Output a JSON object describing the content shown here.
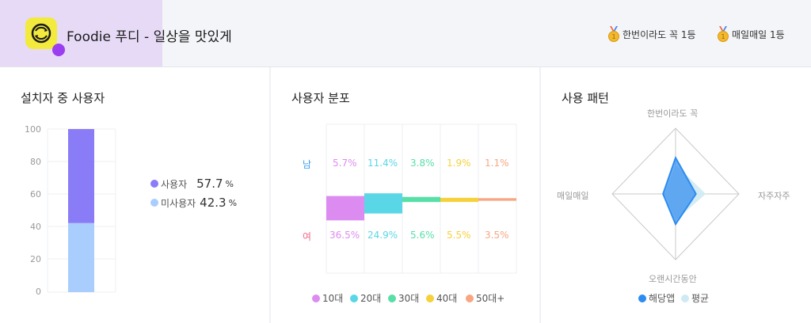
{
  "app": {
    "title": "Foodie 푸디 - 일상을 맛있게"
  },
  "badges": [
    {
      "label": "한번이라도 꼭 1등",
      "icon": "medal-icon"
    },
    {
      "label": "매일매일 1등",
      "icon": "medal-icon"
    }
  ],
  "panels": {
    "users": {
      "title": "설치자 중 사용자"
    },
    "distribution": {
      "title": "사용자 분포"
    },
    "pattern": {
      "title": "사용 패턴"
    }
  },
  "colors": {
    "users": "#8a7cf7",
    "nonusers": "#a9cdfd",
    "age10": "#dc8cf0",
    "age20": "#5ad7e6",
    "age30": "#58dfa8",
    "age40": "#f6d13c",
    "age50": "#f8a682",
    "app": "#2e8cf0",
    "avg": "#cfeaf3"
  },
  "chart_data": [
    {
      "type": "bar",
      "title": "설치자 중 사용자",
      "stacked": true,
      "ylim": [
        0,
        100
      ],
      "yticks": [
        "100",
        "80",
        "60",
        "40",
        "20",
        "0"
      ],
      "series": [
        {
          "name": "사용자",
          "values": [
            57.7
          ],
          "display": "57.7"
        },
        {
          "name": "미사용자",
          "values": [
            42.3
          ],
          "display": "42.3"
        }
      ],
      "unit": "%"
    },
    {
      "type": "bar",
      "title": "사용자 분포",
      "categories": [
        "10대",
        "20대",
        "30대",
        "40대",
        "50대+"
      ],
      "row_labels": {
        "male": "남",
        "female": "여"
      },
      "series": [
        {
          "name": "남",
          "values": [
            5.7,
            11.4,
            3.8,
            1.9,
            1.1
          ],
          "labels": [
            "5.7%",
            "11.4%",
            "3.8%",
            "1.9%",
            "1.1%"
          ]
        },
        {
          "name": "여",
          "values": [
            36.5,
            24.9,
            5.6,
            5.5,
            3.5
          ],
          "labels": [
            "36.5%",
            "24.9%",
            "5.6%",
            "5.5%",
            "3.5%"
          ]
        }
      ]
    },
    {
      "type": "radar",
      "title": "사용 패턴",
      "axes": [
        "한번이라도 꼭",
        "자주자주",
        "오랜시간동안",
        "매일매일"
      ],
      "series": [
        {
          "name": "해당앱",
          "values": [
            0.55,
            0.31,
            0.46,
            0.19
          ]
        },
        {
          "name": "평균",
          "values": [
            0.45,
            0.46,
            0.4,
            0.17
          ]
        }
      ]
    }
  ]
}
